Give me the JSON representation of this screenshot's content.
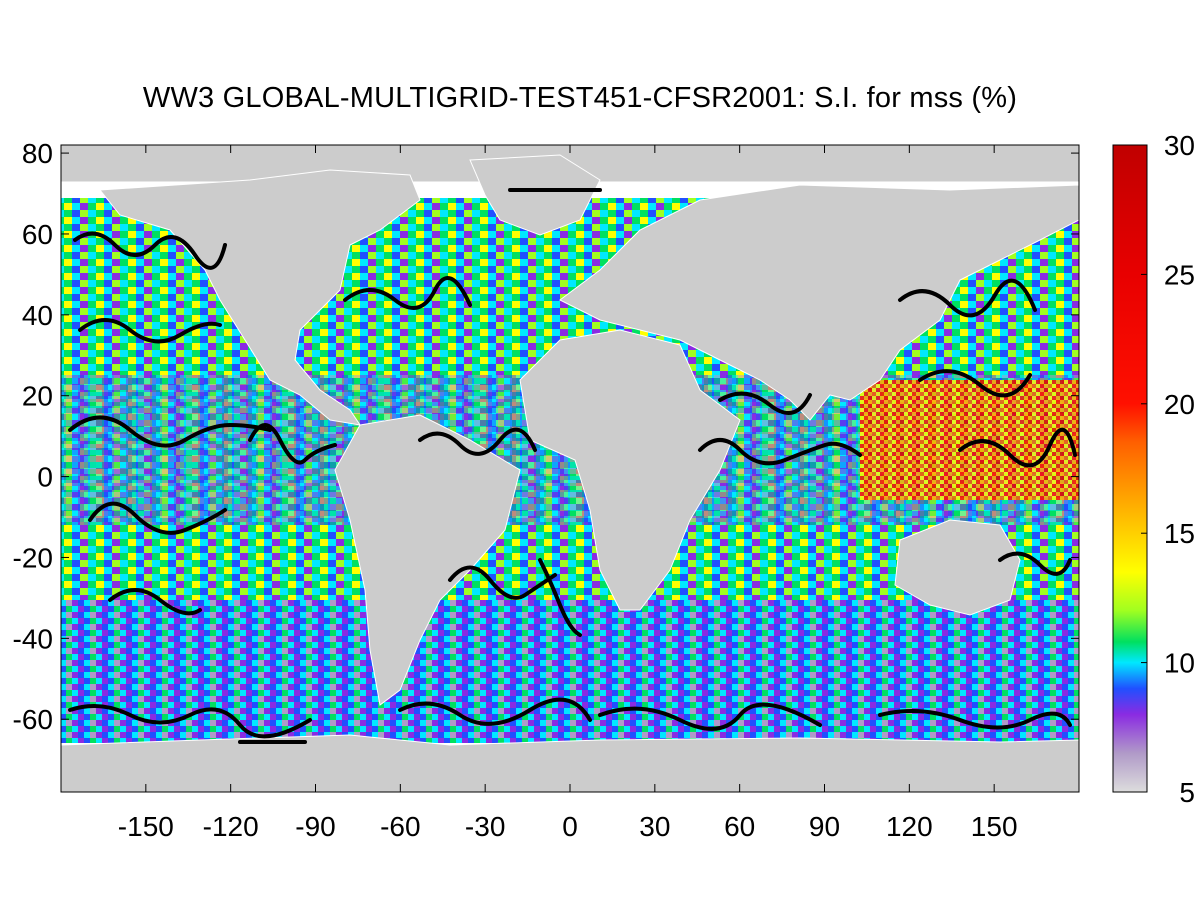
{
  "title": "WW3 GLOBAL-MULTIGRID-TEST451-CFSR2001: S.I. for mss (%)",
  "chart_data": {
    "type": "heatmap",
    "title": "WW3 GLOBAL-MULTIGRID-TEST451-CFSR2001: S.I. for mss (%)",
    "xlabel": "",
    "ylabel": "",
    "xlim": [
      -180,
      180
    ],
    "ylim": [
      -78,
      82
    ],
    "x_ticks": [
      -150,
      -120,
      -90,
      -60,
      -30,
      0,
      30,
      60,
      90,
      120,
      150
    ],
    "x_tick_labels": [
      "-150",
      "-120",
      "-90",
      "-60",
      "-30",
      "0",
      "30",
      "60",
      "90",
      "120",
      "150"
    ],
    "y_ticks": [
      80,
      60,
      40,
      20,
      0,
      -20,
      -40,
      -60
    ],
    "y_tick_labels": [
      "80",
      "60",
      "40",
      "20",
      "0",
      "-20",
      "-40",
      "-60"
    ],
    "colorbar": {
      "range": [
        5,
        30
      ],
      "ticks": [
        30,
        25,
        20,
        15,
        10,
        5
      ],
      "tick_labels": [
        "30",
        "25",
        "20",
        "15",
        "10",
        "5"
      ],
      "stops": [
        {
          "value": 5,
          "color": "#dddddd"
        },
        {
          "value": 6.5,
          "color": "#b09ac8"
        },
        {
          "value": 8,
          "color": "#8a2be2"
        },
        {
          "value": 9,
          "color": "#2050ff"
        },
        {
          "value": 10,
          "color": "#00e8ff"
        },
        {
          "value": 10.8,
          "color": "#00e060"
        },
        {
          "value": 12,
          "color": "#a0ff20"
        },
        {
          "value": 13.5,
          "color": "#ffff00"
        },
        {
          "value": 16,
          "color": "#ffb000"
        },
        {
          "value": 18.5,
          "color": "#ff6000"
        },
        {
          "value": 20,
          "color": "#ff1000"
        },
        {
          "value": 25,
          "color": "#e80000"
        },
        {
          "value": 30,
          "color": "#c00000"
        }
      ]
    },
    "land_color": "#cccccc",
    "ice_color": "#ffffff",
    "contour_color": "#000000",
    "grid": false
  }
}
